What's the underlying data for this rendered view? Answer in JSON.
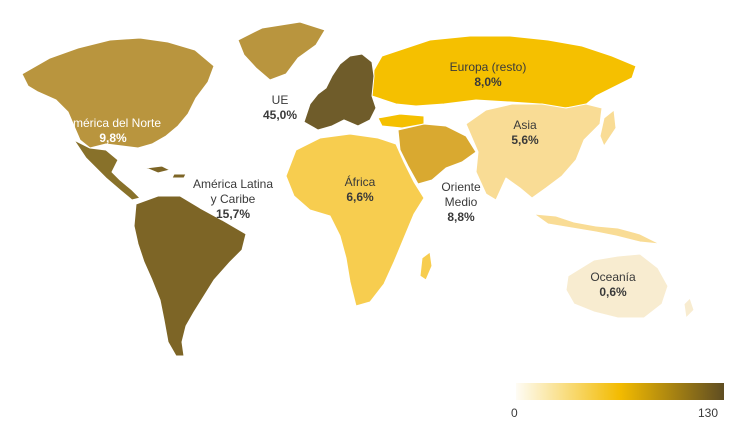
{
  "colors": {
    "scale_low": "#fefcf5",
    "scale_mid": "#f3bb00",
    "scale_high": "#5f4d22",
    "america_norte": "#b9953e",
    "mexico": "#88712a",
    "latam": "#7d6526",
    "ue": "#6f5c2a",
    "europa_resto": "#f5c000",
    "africa": "#f7cd4f",
    "oriente_medio": "#d9a930",
    "asia": "#f9dc95",
    "oceania": "#f8ecd0"
  },
  "regions": [
    {
      "id": "america-norte",
      "name": "América del Norte",
      "value": "9,8%"
    },
    {
      "id": "ue",
      "name": "UE",
      "value": "45,0%"
    },
    {
      "id": "europa-resto",
      "name": "Europa (resto)",
      "value": "8,0%"
    },
    {
      "id": "latam",
      "name": "América Latina\ny Caribe",
      "value": "15,7%"
    },
    {
      "id": "africa",
      "name": "África",
      "value": "6,6%"
    },
    {
      "id": "oriente-medio",
      "name": "Oriente\nMedio",
      "value": "8,8%"
    },
    {
      "id": "asia",
      "name": "Asia",
      "value": "5,6%"
    },
    {
      "id": "oceania",
      "name": "Oceanía",
      "value": "0,6%"
    }
  ],
  "legend": {
    "min": "0",
    "max": "130"
  }
}
